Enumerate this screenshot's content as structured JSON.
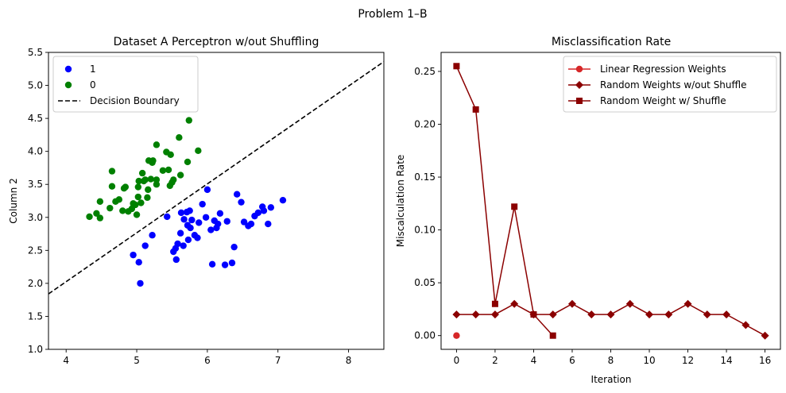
{
  "figure": {
    "suptitle": "Problem 1–B"
  },
  "chart_data": [
    {
      "type": "scatter",
      "title": "Dataset A Perceptron w/out Shuffling",
      "xlabel": "",
      "ylabel": "Column 2",
      "xlim": [
        3.75,
        8.5
      ],
      "ylim": [
        1.0,
        5.5
      ],
      "xticks": [
        4,
        5,
        6,
        7,
        8
      ],
      "yticks": [
        1.0,
        1.5,
        2.0,
        2.5,
        3.0,
        3.5,
        4.0,
        4.5,
        5.0,
        5.5
      ],
      "grid": false,
      "legend_position": "top-left",
      "series": [
        {
          "name": "1",
          "color": "#0000ff",
          "marker": "circle",
          "points": [
            [
              4.95,
              2.43
            ],
            [
              5.03,
              2.32
            ],
            [
              5.05,
              2.0
            ],
            [
              5.12,
              2.57
            ],
            [
              5.22,
              2.73
            ],
            [
              5.43,
              3.01
            ],
            [
              5.52,
              2.48
            ],
            [
              5.55,
              2.53
            ],
            [
              5.56,
              2.36
            ],
            [
              5.58,
              2.6
            ],
            [
              5.62,
              2.76
            ],
            [
              5.63,
              3.07
            ],
            [
              5.66,
              2.57
            ],
            [
              5.67,
              2.97
            ],
            [
              5.71,
              3.08
            ],
            [
              5.72,
              2.88
            ],
            [
              5.73,
              2.66
            ],
            [
              5.75,
              3.1
            ],
            [
              5.76,
              2.84
            ],
            [
              5.78,
              2.96
            ],
            [
              5.82,
              2.73
            ],
            [
              5.86,
              2.69
            ],
            [
              5.88,
              2.92
            ],
            [
              5.93,
              3.2
            ],
            [
              5.98,
              3.0
            ],
            [
              6.0,
              3.42
            ],
            [
              6.05,
              2.81
            ],
            [
              6.07,
              2.29
            ],
            [
              6.1,
              2.95
            ],
            [
              6.13,
              2.84
            ],
            [
              6.15,
              2.9
            ],
            [
              6.18,
              3.06
            ],
            [
              6.25,
              2.28
            ],
            [
              6.28,
              2.94
            ],
            [
              6.35,
              2.31
            ],
            [
              6.38,
              2.55
            ],
            [
              6.42,
              3.35
            ],
            [
              6.48,
              3.23
            ],
            [
              6.52,
              2.93
            ],
            [
              6.58,
              2.87
            ],
            [
              6.62,
              2.9
            ],
            [
              6.67,
              3.02
            ],
            [
              6.72,
              3.07
            ],
            [
              6.78,
              3.16
            ],
            [
              6.8,
              3.1
            ],
            [
              6.86,
              2.9
            ],
            [
              6.9,
              3.15
            ],
            [
              7.07,
              3.26
            ]
          ]
        },
        {
          "name": "0",
          "color": "#008000",
          "marker": "circle",
          "points": [
            [
              4.33,
              3.01
            ],
            [
              4.43,
              3.06
            ],
            [
              4.48,
              2.99
            ],
            [
              4.48,
              3.24
            ],
            [
              4.62,
              3.14
            ],
            [
              4.65,
              3.47
            ],
            [
              4.65,
              3.7
            ],
            [
              4.7,
              3.24
            ],
            [
              4.75,
              3.27
            ],
            [
              4.8,
              3.1
            ],
            [
              4.82,
              3.44
            ],
            [
              4.84,
              3.46
            ],
            [
              4.88,
              3.09
            ],
            [
              4.93,
              3.13
            ],
            [
              4.95,
              3.21
            ],
            [
              4.98,
              3.19
            ],
            [
              5.0,
              3.04
            ],
            [
              5.02,
              3.31
            ],
            [
              5.02,
              3.46
            ],
            [
              5.03,
              3.55
            ],
            [
              5.06,
              3.22
            ],
            [
              5.08,
              3.67
            ],
            [
              5.1,
              3.55
            ],
            [
              5.12,
              3.57
            ],
            [
              5.15,
              3.3
            ],
            [
              5.16,
              3.42
            ],
            [
              5.17,
              3.86
            ],
            [
              5.2,
              3.58
            ],
            [
              5.22,
              3.83
            ],
            [
              5.23,
              3.86
            ],
            [
              5.28,
              3.5
            ],
            [
              5.28,
              3.57
            ],
            [
              5.28,
              4.1
            ],
            [
              5.37,
              3.71
            ],
            [
              5.42,
              3.99
            ],
            [
              5.45,
              3.72
            ],
            [
              5.47,
              3.48
            ],
            [
              5.48,
              3.95
            ],
            [
              5.5,
              3.53
            ],
            [
              5.52,
              3.57
            ],
            [
              5.6,
              4.21
            ],
            [
              5.62,
              3.64
            ],
            [
              5.72,
              3.84
            ],
            [
              5.74,
              4.47
            ],
            [
              5.87,
              4.01
            ]
          ]
        },
        {
          "name": "Decision Boundary",
          "type": "line",
          "style": "dashed",
          "color": "#000000",
          "points": [
            [
              3.75,
              1.84
            ],
            [
              8.5,
              5.36
            ]
          ]
        }
      ]
    },
    {
      "type": "line",
      "title": "Misclassification Rate",
      "xlabel": "Iteration",
      "ylabel": "Miscalculation Rate",
      "xlim": [
        -0.8,
        16.8
      ],
      "ylim": [
        -0.013,
        0.268
      ],
      "xticks": [
        0,
        2,
        4,
        6,
        8,
        10,
        12,
        14,
        16
      ],
      "yticks": [
        0.0,
        0.05,
        0.1,
        0.15,
        0.2,
        0.25
      ],
      "ytick_labels": [
        "0.00",
        "0.05",
        "0.10",
        "0.15",
        "0.20",
        "0.25"
      ],
      "grid": false,
      "legend_position": "top-right",
      "series": [
        {
          "name": "Linear Regression Weights",
          "color": "#d62728",
          "marker": "circle",
          "x": [
            0
          ],
          "y": [
            0.0
          ]
        },
        {
          "name": "Random Weights w/out Shuffle",
          "color": "#8b0000",
          "marker": "diamond",
          "x": [
            0,
            1,
            2,
            3,
            4,
            5,
            6,
            7,
            8,
            9,
            10,
            11,
            12,
            13,
            14,
            15,
            16
          ],
          "y": [
            0.02,
            0.02,
            0.02,
            0.03,
            0.02,
            0.02,
            0.03,
            0.02,
            0.02,
            0.03,
            0.02,
            0.02,
            0.03,
            0.02,
            0.02,
            0.01,
            0.0
          ]
        },
        {
          "name": "Random Weight w/ Shuffle",
          "color": "#8b0000",
          "marker": "square",
          "x": [
            0,
            1,
            2,
            3,
            4,
            5
          ],
          "y": [
            0.255,
            0.214,
            0.03,
            0.122,
            0.02,
            0.0
          ]
        }
      ]
    }
  ]
}
